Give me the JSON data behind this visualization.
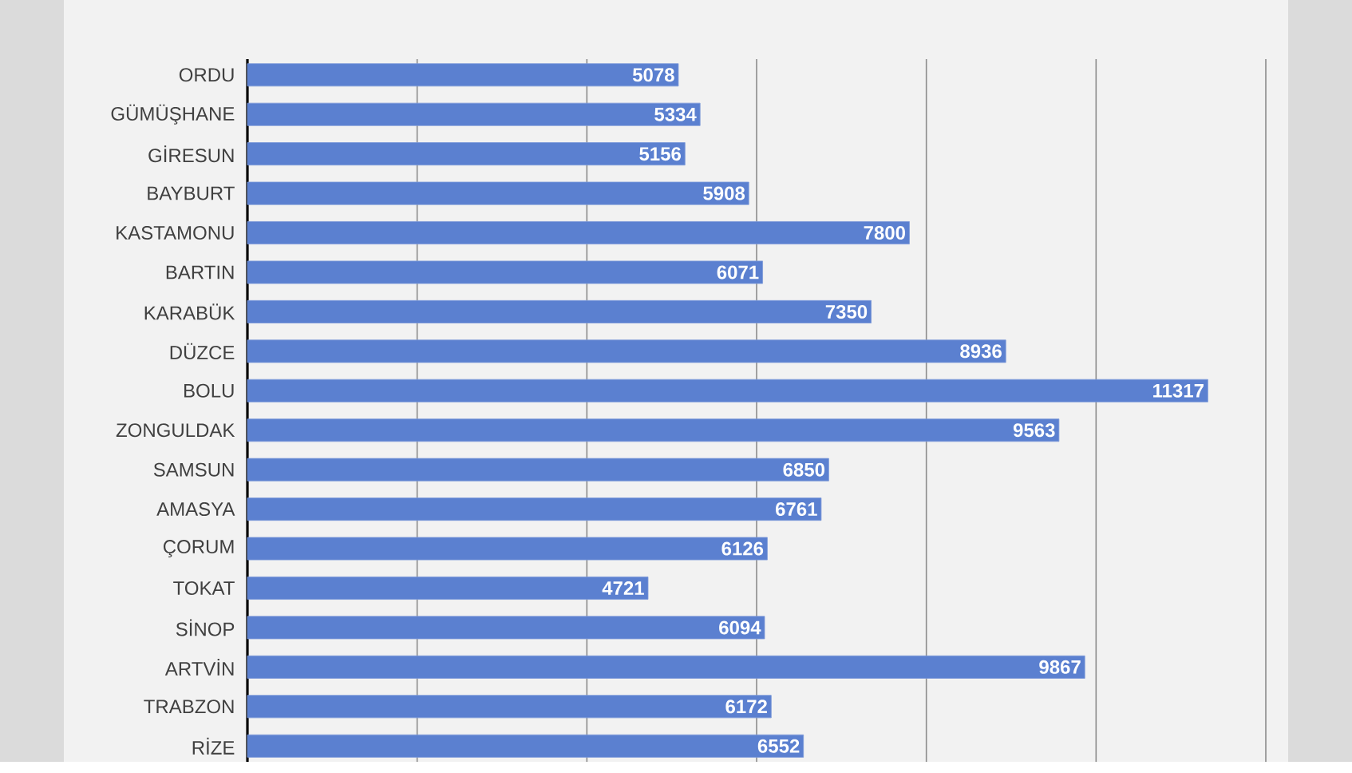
{
  "chart_data": {
    "type": "bar",
    "orientation": "horizontal",
    "categories": [
      "ORDU",
      "GÜMÜŞHANE",
      "GİRESUN",
      "BAYBURT",
      "KASTAMONU",
      "BARTIN",
      "KARABÜK",
      "DÜZCE",
      "BOLU",
      "ZONGULDAK",
      "SAMSUN",
      "AMASYA",
      "ÇORUM",
      "TOKAT",
      "SİNOP",
      "ARTVİN",
      "TRABZON",
      "RİZE"
    ],
    "values": [
      5078,
      5334,
      5156,
      5908,
      7800,
      6071,
      7350,
      8936,
      11317,
      9563,
      6850,
      6761,
      6126,
      4721,
      6094,
      9867,
      6172,
      6552
    ],
    "color": "#5b80d0",
    "xlim": [
      0,
      12000
    ],
    "xticks": [
      {
        "value": 0,
        "label": null
      },
      {
        "value": 2000,
        "label": null
      },
      {
        "value": 4000,
        "label": null
      },
      {
        "value": 6000,
        "label": null
      },
      {
        "value": 8000,
        "label": null
      },
      {
        "value": 10000,
        "label": null
      },
      {
        "value": 12000,
        "label": null
      }
    ],
    "tick_labels": "y",
    "grid": "x",
    "data_labels": true
  }
}
